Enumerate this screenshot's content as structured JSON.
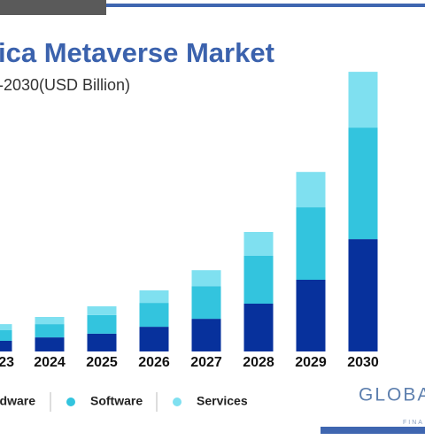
{
  "chart_data": {
    "type": "bar",
    "stacked": true,
    "title": "ica Metaverse Market",
    "subtitle": "-2030(USD Billion)",
    "categories": [
      "23",
      "2024",
      "2025",
      "2026",
      "2027",
      "2028",
      "2029",
      "2030"
    ],
    "series": [
      {
        "name": "dware",
        "color": "#07319c",
        "values": [
          4,
          5.3,
          6.7,
          9.3,
          12.3,
          18,
          27,
          42.3
        ]
      },
      {
        "name": "Software",
        "color": "#33c4de",
        "values": [
          4,
          5,
          7,
          9,
          12.3,
          18,
          27.3,
          42
        ]
      },
      {
        "name": "Services",
        "color": "#7fe0f0",
        "values": [
          2.3,
          2.7,
          3.3,
          4.7,
          6,
          9,
          13.3,
          21
        ]
      }
    ]
  },
  "logo": {
    "text": "GLOBA",
    "subtext": "FINA"
  }
}
